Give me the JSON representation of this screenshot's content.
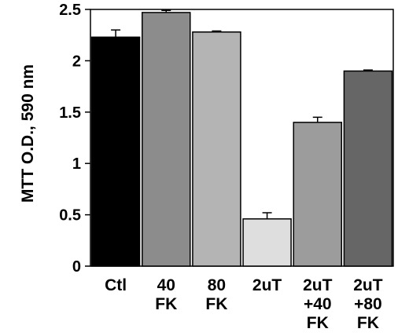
{
  "chart_data": {
    "type": "bar",
    "ylabel": "MTT O.D., 590 nm",
    "xlabel": "",
    "ylim": [
      0,
      2.5
    ],
    "yticks": [
      "0",
      "0.5",
      "1",
      "1.5",
      "2",
      "2.5"
    ],
    "grid": false,
    "categories": [
      [
        "Ctl"
      ],
      [
        "40",
        "FK"
      ],
      [
        "80",
        "FK"
      ],
      [
        "2uT"
      ],
      [
        "2uT",
        "+40",
        "FK"
      ],
      [
        "2uT",
        "+80",
        "FK"
      ]
    ],
    "values": [
      2.23,
      2.47,
      2.28,
      0.46,
      1.4,
      1.9
    ],
    "errors": [
      0.07,
      0.02,
      0.01,
      0.06,
      0.05,
      0.01
    ],
    "colors": [
      "#000000",
      "#8c8c8c",
      "#b4b4b4",
      "#dedede",
      "#9c9c9c",
      "#666666"
    ]
  }
}
